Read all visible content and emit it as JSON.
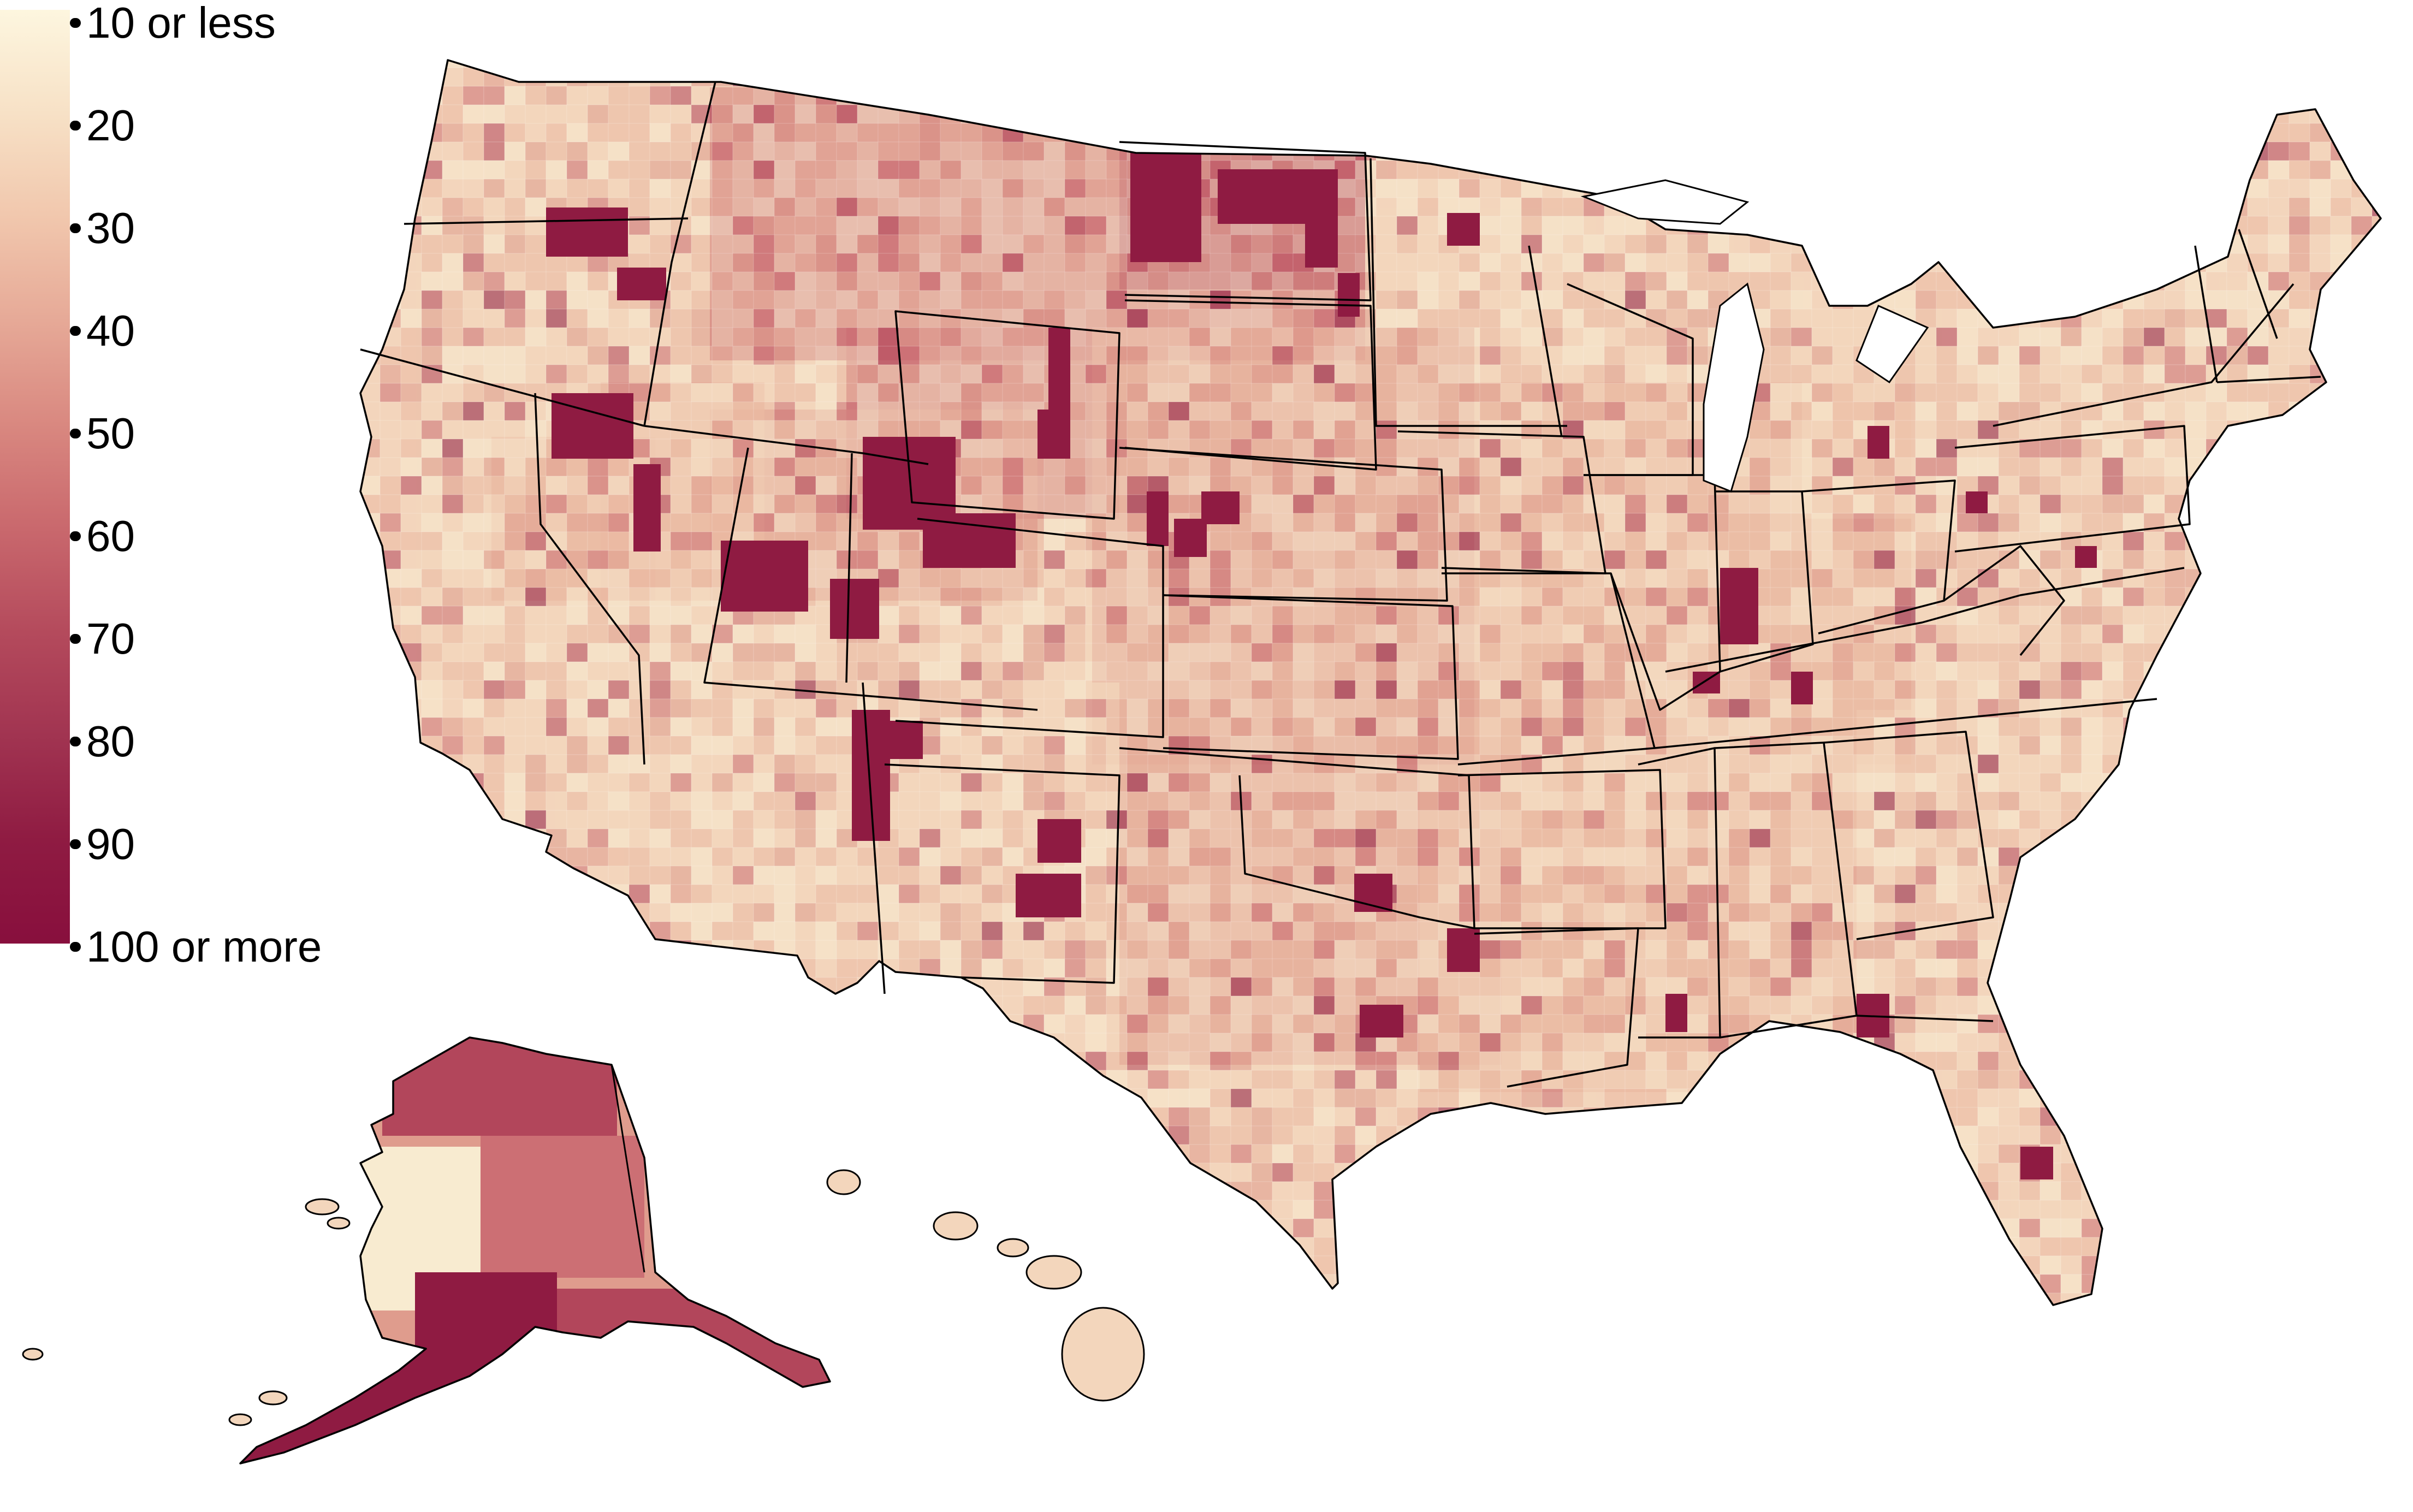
{
  "legend": {
    "labels": [
      "10 or less",
      "20",
      "30",
      "40",
      "50",
      "60",
      "70",
      "80",
      "90",
      "100 or more"
    ],
    "colors": [
      "#fdf6df",
      "#f7e1c6",
      "#f1c7ad",
      "#e6a997",
      "#d98880",
      "#c9686d",
      "#b44a5c",
      "#a13451",
      "#8f1b42",
      "#880f3d"
    ]
  },
  "map": {
    "colors": {
      "very_low": "#f8ebd0",
      "low": "#f3d6bc",
      "medium_low": "#ebbaa3",
      "medium": "#df9c8d",
      "medium_high": "#cc6f74",
      "high": "#b2465b",
      "very_high": "#8f1b42",
      "borders": "#000000"
    }
  }
}
